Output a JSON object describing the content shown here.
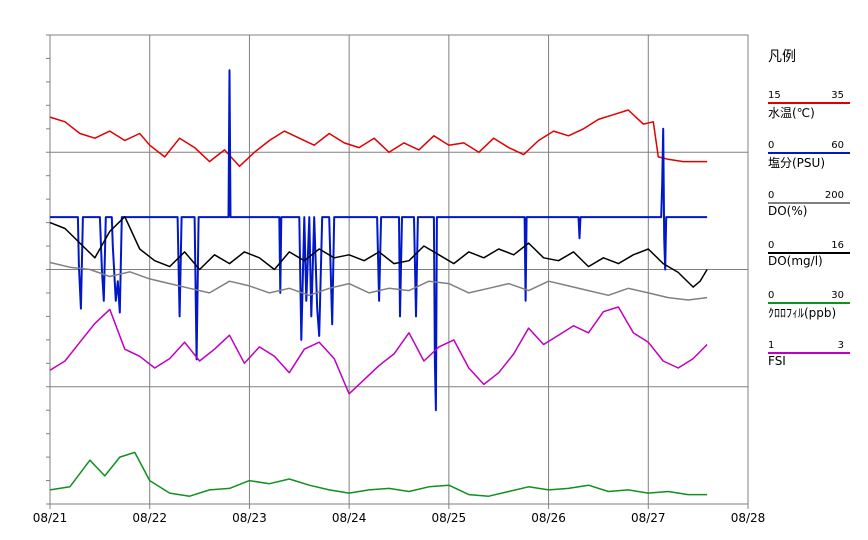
{
  "legend": {
    "title": "凡例",
    "items": [
      {
        "label": "水温(℃)",
        "min": "15",
        "max": "35",
        "color": "#e00000"
      },
      {
        "label": "塩分(PSU)",
        "min": "0",
        "max": "60",
        "color": "#0018c8"
      },
      {
        "label": "DO(%)",
        "min": "0",
        "max": "200",
        "color": "#808080"
      },
      {
        "label": "DO(mg/l)",
        "min": "0",
        "max": "16",
        "color": "#000000"
      },
      {
        "label": "ｸﾛﾛﾌｨﾙ(ppb)",
        "min": "0",
        "max": "30",
        "color": "#109020"
      },
      {
        "label": "FSI",
        "min": "1",
        "max": "3",
        "color": "#c000c0"
      }
    ]
  },
  "chart_data": {
    "type": "line",
    "x_ticks": [
      "08/21",
      "08/22",
      "08/23",
      "08/24",
      "08/25",
      "08/26",
      "08/27",
      "08/28"
    ],
    "xlim": [
      0,
      7
    ],
    "x_unit": "days since 08/21 00:00",
    "grid": true,
    "series": [
      {
        "name": "水温(℃)",
        "color": "#e00000",
        "ylim": [
          15,
          35
        ],
        "x": [
          0,
          0.15,
          0.3,
          0.45,
          0.6,
          0.75,
          0.9,
          1.0,
          1.15,
          1.3,
          1.45,
          1.6,
          1.75,
          1.9,
          2.05,
          2.2,
          2.35,
          2.5,
          2.65,
          2.8,
          2.95,
          3.1,
          3.25,
          3.4,
          3.55,
          3.7,
          3.85,
          4.0,
          4.15,
          4.3,
          4.45,
          4.6,
          4.75,
          4.9,
          5.05,
          5.2,
          5.35,
          5.5,
          5.65,
          5.8,
          5.95,
          6.05,
          6.1,
          6.2,
          6.35,
          6.5,
          6.59
        ],
        "y": [
          31.5,
          31.3,
          30.8,
          30.6,
          30.9,
          30.5,
          30.8,
          30.3,
          29.8,
          30.6,
          30.2,
          29.6,
          30.1,
          29.4,
          30.0,
          30.5,
          30.9,
          30.6,
          30.3,
          30.8,
          30.4,
          30.2,
          30.6,
          30.0,
          30.4,
          30.1,
          30.7,
          30.3,
          30.4,
          30.0,
          30.6,
          30.2,
          29.9,
          30.5,
          30.9,
          30.7,
          31.0,
          31.4,
          31.6,
          31.8,
          31.2,
          31.3,
          29.8,
          29.7,
          29.6,
          29.6,
          29.6
        ]
      },
      {
        "name": "塩分(PSU)",
        "color": "#0018c8",
        "ylim": [
          0,
          60
        ],
        "x": [
          0,
          0.28,
          0.29,
          0.31,
          0.33,
          0.5,
          0.52,
          0.54,
          0.56,
          0.62,
          0.63,
          0.66,
          0.68,
          0.7,
          0.72,
          1.0,
          1.28,
          1.3,
          1.32,
          1.45,
          1.47,
          1.49,
          1.79,
          1.8,
          1.81,
          2.3,
          2.31,
          2.32,
          2.35,
          2.5,
          2.52,
          2.55,
          2.57,
          2.6,
          2.62,
          2.65,
          2.68,
          2.7,
          2.73,
          2.8,
          2.83,
          2.85,
          3.28,
          3.3,
          3.32,
          3.5,
          3.51,
          3.53,
          3.65,
          3.67,
          3.69,
          3.85,
          3.86,
          3.87,
          3.88,
          4.76,
          4.77,
          4.78,
          5.3,
          5.31,
          5.32,
          6.13,
          6.14,
          6.15,
          6.16,
          6.17,
          6.18,
          6.59
        ],
        "y": [
          36.7,
          36.7,
          30.5,
          25.0,
          36.7,
          36.7,
          30.0,
          26.0,
          36.7,
          36.7,
          33.0,
          26.0,
          28.5,
          24.5,
          36.7,
          36.7,
          36.7,
          24.0,
          36.7,
          36.7,
          18.5,
          36.7,
          36.7,
          55.5,
          36.7,
          36.7,
          27.0,
          36.7,
          36.7,
          36.7,
          21.0,
          36.7,
          26.0,
          36.7,
          24.0,
          36.7,
          25.0,
          21.5,
          36.7,
          36.7,
          23.0,
          36.7,
          36.7,
          26.0,
          36.7,
          36.7,
          24.0,
          36.7,
          36.7,
          24.0,
          36.7,
          36.7,
          18.0,
          12.0,
          36.7,
          36.7,
          26.0,
          36.7,
          36.7,
          34.0,
          36.7,
          36.7,
          41.0,
          48.0,
          34.0,
          30.0,
          36.7,
          36.7
        ]
      },
      {
        "name": "DO(%)",
        "color": "#808080",
        "ylim": [
          0,
          200
        ],
        "x": [
          0,
          0.2,
          0.4,
          0.6,
          0.8,
          1.0,
          1.2,
          1.4,
          1.6,
          1.8,
          2.0,
          2.2,
          2.4,
          2.6,
          2.8,
          3.0,
          3.2,
          3.4,
          3.6,
          3.8,
          4.0,
          4.2,
          4.4,
          4.6,
          4.8,
          5.0,
          5.2,
          5.4,
          5.6,
          5.8,
          6.0,
          6.2,
          6.4,
          6.59
        ],
        "y": [
          103,
          101,
          100,
          97,
          99,
          96,
          94,
          92,
          90,
          95,
          93,
          90,
          92,
          89,
          92,
          94,
          90,
          92,
          91,
          95,
          94,
          90,
          92,
          94,
          91,
          95,
          93,
          91,
          89,
          92,
          90,
          88,
          87,
          88
        ]
      },
      {
        "name": "DO(mg/l)",
        "color": "#000000",
        "ylim": [
          0,
          16
        ],
        "x": [
          0,
          0.15,
          0.3,
          0.45,
          0.6,
          0.75,
          0.9,
          1.05,
          1.2,
          1.35,
          1.5,
          1.65,
          1.8,
          1.95,
          2.1,
          2.25,
          2.4,
          2.55,
          2.7,
          2.85,
          3.0,
          3.15,
          3.3,
          3.45,
          3.6,
          3.75,
          3.9,
          4.05,
          4.2,
          4.35,
          4.5,
          4.65,
          4.8,
          4.95,
          5.1,
          5.25,
          5.4,
          5.55,
          5.7,
          5.85,
          6.0,
          6.15,
          6.3,
          6.45,
          6.52,
          6.59
        ],
        "y": [
          9.6,
          9.4,
          8.9,
          8.4,
          9.3,
          9.8,
          8.7,
          8.3,
          8.1,
          8.6,
          8.0,
          8.5,
          8.2,
          8.6,
          8.4,
          8.0,
          8.6,
          8.3,
          8.7,
          8.4,
          8.5,
          8.3,
          8.6,
          8.2,
          8.3,
          8.8,
          8.5,
          8.2,
          8.6,
          8.4,
          8.7,
          8.5,
          8.9,
          8.4,
          8.3,
          8.6,
          8.1,
          8.4,
          8.2,
          8.5,
          8.7,
          8.2,
          7.9,
          7.4,
          7.6,
          8.0
        ]
      },
      {
        "name": "ｸﾛﾛﾌｨﾙ(ppb)",
        "color": "#109020",
        "ylim": [
          0,
          30
        ],
        "x": [
          0,
          0.2,
          0.4,
          0.55,
          0.7,
          0.85,
          1.0,
          1.2,
          1.4,
          1.6,
          1.8,
          2.0,
          2.2,
          2.4,
          2.6,
          2.8,
          3.0,
          3.2,
          3.4,
          3.6,
          3.8,
          4.0,
          4.2,
          4.4,
          4.6,
          4.8,
          5.0,
          5.2,
          5.4,
          5.6,
          5.8,
          6.0,
          6.2,
          6.4,
          6.59
        ],
        "y": [
          0.9,
          1.1,
          2.8,
          1.8,
          3.0,
          3.3,
          1.5,
          0.7,
          0.5,
          0.9,
          1.0,
          1.5,
          1.3,
          1.6,
          1.2,
          0.9,
          0.7,
          0.9,
          1.0,
          0.8,
          1.1,
          1.2,
          0.6,
          0.5,
          0.8,
          1.1,
          0.9,
          1.0,
          1.2,
          0.8,
          0.9,
          0.7,
          0.8,
          0.6,
          0.6
        ]
      },
      {
        "name": "FSI",
        "color": "#c000c0",
        "ylim": [
          1,
          3
        ],
        "x": [
          0,
          0.15,
          0.3,
          0.45,
          0.6,
          0.75,
          0.9,
          1.05,
          1.2,
          1.35,
          1.5,
          1.65,
          1.8,
          1.95,
          2.1,
          2.25,
          2.4,
          2.55,
          2.7,
          2.85,
          3.0,
          3.15,
          3.3,
          3.45,
          3.6,
          3.75,
          3.9,
          4.05,
          4.2,
          4.35,
          4.5,
          4.65,
          4.8,
          4.95,
          5.1,
          5.25,
          5.4,
          5.55,
          5.7,
          5.85,
          6.0,
          6.15,
          6.3,
          6.45,
          6.59
        ],
        "y": [
          1.57,
          1.61,
          1.69,
          1.77,
          1.83,
          1.66,
          1.63,
          1.58,
          1.62,
          1.69,
          1.61,
          1.66,
          1.72,
          1.6,
          1.67,
          1.63,
          1.56,
          1.66,
          1.69,
          1.62,
          1.47,
          1.53,
          1.59,
          1.64,
          1.73,
          1.61,
          1.67,
          1.7,
          1.58,
          1.51,
          1.56,
          1.64,
          1.75,
          1.68,
          1.72,
          1.76,
          1.73,
          1.82,
          1.84,
          1.73,
          1.69,
          1.61,
          1.58,
          1.62,
          1.68
        ]
      }
    ]
  }
}
